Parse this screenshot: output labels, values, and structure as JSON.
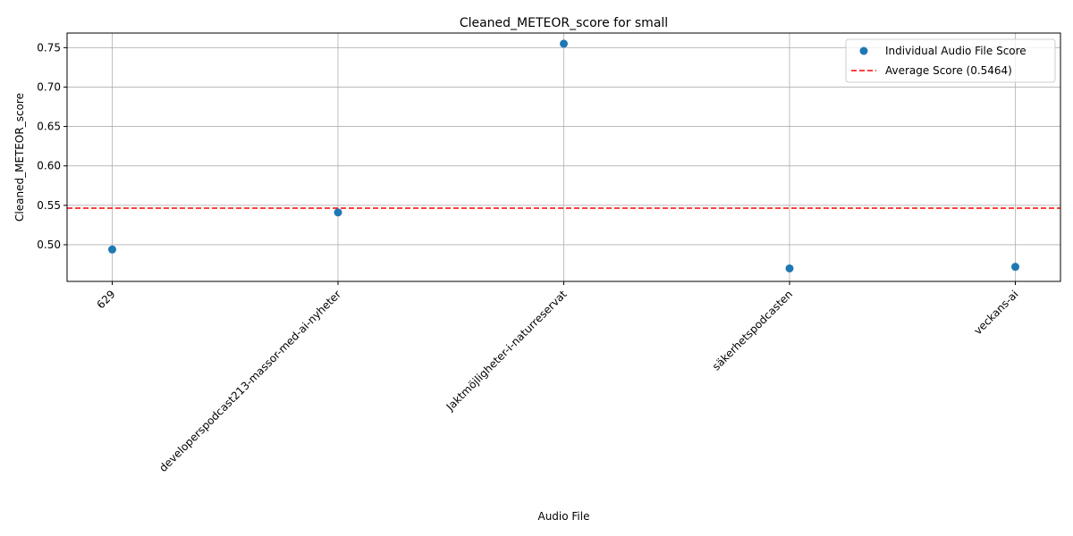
{
  "chart_data": {
    "type": "scatter",
    "title": "Cleaned_METEOR_score for small",
    "xlabel": "Audio File",
    "ylabel": "Cleaned_METEOR_score",
    "categories": [
      "629",
      "developerspodcast213-massor-med-ai-nyheter",
      "Jaktmöjligheter-i-naturreservat",
      "säkerhetspodcasten",
      "veckans-ai"
    ],
    "series": [
      {
        "name": "Individual Audio File Score",
        "values": [
          0.494,
          0.541,
          0.755,
          0.47,
          0.472
        ],
        "color": "#1f77b4"
      }
    ],
    "average": {
      "name": "Average Score (0.5464)",
      "value": 0.5464,
      "color": "#ff0000",
      "style": "dashed"
    },
    "ylim": [
      0.4535,
      0.7685
    ],
    "yticks": [
      0.5,
      0.55,
      0.6,
      0.65,
      0.7,
      0.75
    ],
    "ytick_labels": [
      "0.50",
      "0.55",
      "0.60",
      "0.65",
      "0.70",
      "0.75"
    ],
    "grid": true,
    "legend_position": "top-right"
  }
}
